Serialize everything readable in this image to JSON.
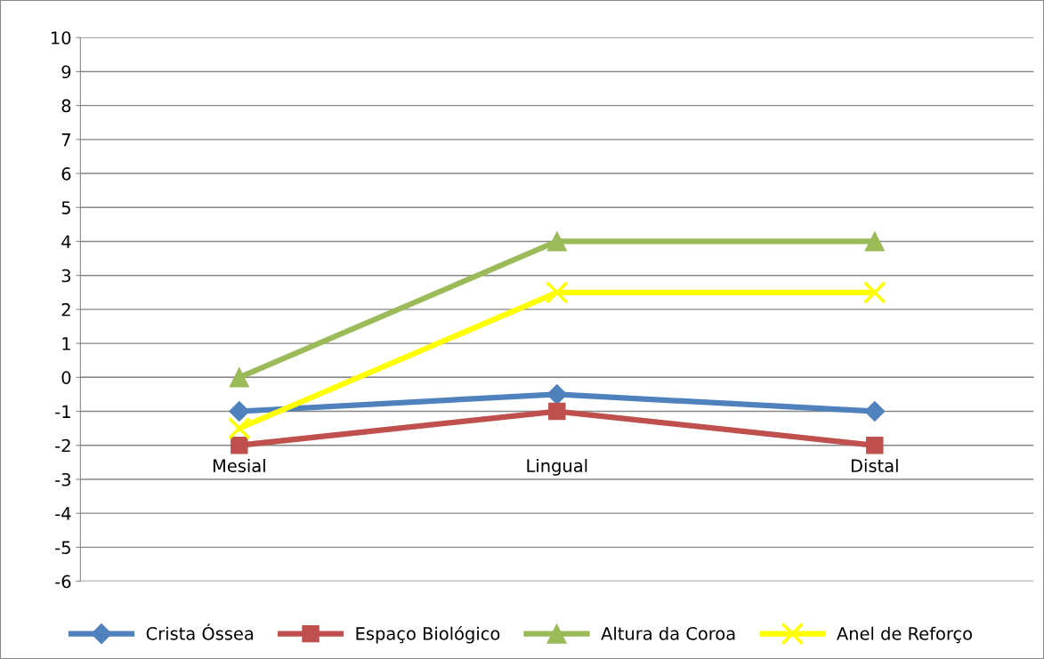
{
  "chart_data": {
    "type": "line",
    "categories": [
      "Mesial",
      "Lingual",
      "Distal"
    ],
    "series": [
      {
        "name": "Crista Óssea",
        "color": "#4f81bd",
        "marker": "diamond",
        "values": [
          -1,
          -0.5,
          -1
        ]
      },
      {
        "name": "Espaço Biológico",
        "color": "#c0504d",
        "marker": "square",
        "values": [
          -2,
          -1,
          -2
        ]
      },
      {
        "name": "Altura da Coroa",
        "color": "#9bbb59",
        "marker": "triangle",
        "values": [
          0,
          4,
          4
        ]
      },
      {
        "name": "Anel de Reforço",
        "color": "#ffff00",
        "marker": "cross",
        "values": [
          -1.5,
          2.5,
          2.5
        ]
      }
    ],
    "ylim": [
      -6,
      10
    ],
    "yticks": [
      -6,
      -5,
      -4,
      -3,
      -2,
      -1,
      0,
      1,
      2,
      3,
      4,
      5,
      6,
      7,
      8,
      9,
      10
    ],
    "grid": "y",
    "legend": "bottom",
    "line_style": "solid"
  }
}
